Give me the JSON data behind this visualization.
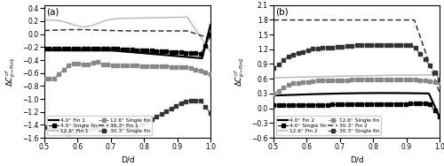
{
  "xlim": [
    0.5,
    1.0
  ],
  "xlabel": "D/d",
  "fig_width": 5.0,
  "fig_height": 1.88,
  "panel_a": {
    "label": "(a)",
    "ylabel": "ΔC_p-Fin1",
    "ylim": [
      -1.6,
      0.45
    ],
    "yticks": [
      -1.6,
      -1.4,
      -1.2,
      -1.0,
      -0.8,
      -0.6,
      -0.4,
      -0.2,
      0.0,
      0.2,
      0.4
    ]
  },
  "panel_b": {
    "label": "(b)",
    "ylabel": "ΔC_p-Fin2",
    "ylim": [
      -0.6,
      2.1
    ],
    "yticks": [
      -0.6,
      -0.3,
      0.0,
      0.3,
      0.6,
      0.9,
      1.2,
      1.5,
      1.8,
      2.1
    ]
  }
}
